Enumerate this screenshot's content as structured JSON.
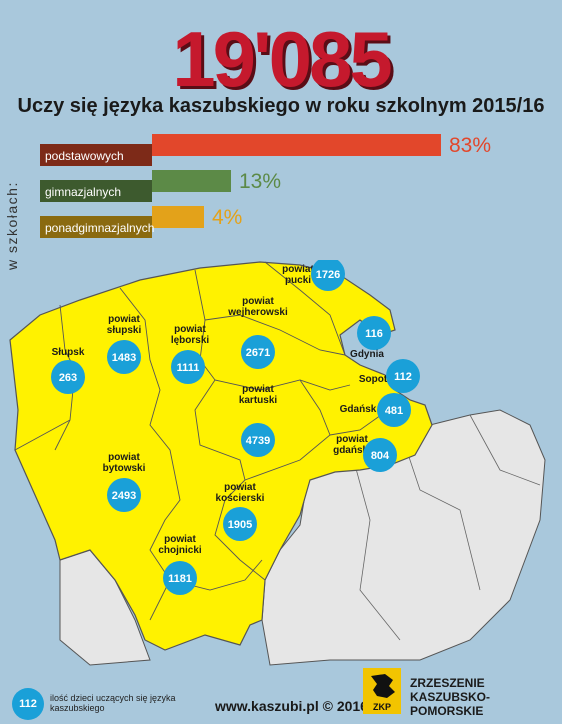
{
  "header": {
    "big_number": "19'085",
    "subtitle": "Uczy się języka kaszubskiego w roku szkolnym 2015/16",
    "side_label": "w szkołach:"
  },
  "chart_data": [
    {
      "type": "bar",
      "orientation": "horizontal",
      "title": "Uczy się języka kaszubskiego w roku szkolnym 2015/16",
      "categories": [
        "podstawowych",
        "gimnazjalnych",
        "ponadgimnazjalnych"
      ],
      "values": [
        83,
        13,
        4
      ],
      "value_labels": [
        "83%",
        "13%",
        "4%"
      ],
      "colors": [
        "#e2472b",
        "#5c8a47",
        "#e3a21a"
      ],
      "xlim": [
        0,
        100
      ]
    },
    {
      "type": "map",
      "regions": [
        {
          "name": "Słupsk",
          "value": 263
        },
        {
          "name": "powiat słupski",
          "value": 1483
        },
        {
          "name": "powiat lęborski",
          "value": 1111
        },
        {
          "name": "powiat wejherowski",
          "value": 2671
        },
        {
          "name": "powiat pucki",
          "value": 1726
        },
        {
          "name": "Gdynia",
          "value": 116
        },
        {
          "name": "Sopot",
          "value": 112
        },
        {
          "name": "Gdańsk",
          "value": 481
        },
        {
          "name": "powiat kartuski",
          "value": 4739
        },
        {
          "name": "powiat gdański",
          "value": 804
        },
        {
          "name": "powiat bytowski",
          "value": 2493
        },
        {
          "name": "powiat kościerski",
          "value": 1905
        },
        {
          "name": "powiat chojnicki",
          "value": 1181
        }
      ]
    }
  ],
  "map_labels": {
    "slupsk": "Słupsk",
    "slupski": [
      "powiat",
      "słupski"
    ],
    "leborski": [
      "powiat",
      "lęborski"
    ],
    "wejherowski": [
      "powiat",
      "wejherowski"
    ],
    "pucki": [
      "powiat",
      "pucki"
    ],
    "gdynia": "Gdynia",
    "sopot": "Sopot",
    "gdansk": "Gdańsk",
    "kartuski": [
      "powiat",
      "kartuski"
    ],
    "gdanski": [
      "powiat",
      "gdański"
    ],
    "bytowski": [
      "powiat",
      "bytowski"
    ],
    "koscierski": [
      "powiat",
      "kościerski"
    ],
    "chojnicki": [
      "powiat",
      "chojnicki"
    ]
  },
  "legend": {
    "sample_value": "112",
    "text": "ilość dzieci uczących się języka kaszubskiego"
  },
  "footer": {
    "url": "www.kaszubi.pl © 2016",
    "org_line1": "ZRZESZENIE",
    "org_line2": "KASZUBSKO-POMORSKIE",
    "logo_text": "ZKP"
  },
  "colors": {
    "background": "#a9c8dc",
    "region": "#fff200",
    "other_region": "#e6e6e6",
    "circle": "#1aa0d8",
    "title_red": "#c5192d"
  }
}
